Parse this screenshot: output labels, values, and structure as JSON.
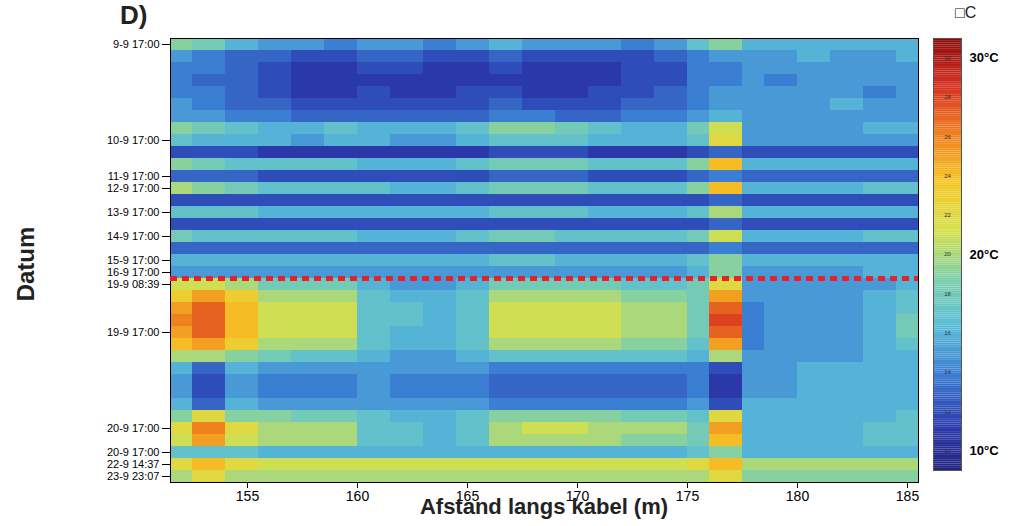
{
  "chart_data": {
    "type": "heatmap",
    "title": "D)",
    "x_label": "Afstand langs kabel (m)",
    "y_label": "Datum",
    "xlim": [
      151.5,
      185.5
    ],
    "xticks": [
      155,
      160,
      165,
      170,
      175,
      180,
      185
    ],
    "x_edges": [
      151.5,
      152.5,
      154,
      155.5,
      157,
      158.5,
      160,
      161.5,
      163,
      164.5,
      166,
      167.5,
      169,
      170.5,
      172,
      173.5,
      175,
      176,
      177.5,
      178.5,
      180,
      181.5,
      183,
      184.5,
      185.5
    ],
    "y_categories": [
      "9-9 17:00",
      null,
      null,
      null,
      null,
      null,
      null,
      null,
      "10-9 17:00",
      null,
      null,
      "11-9 17:00",
      "12-9 17:00",
      null,
      "13-9 17:00",
      null,
      "14-9 17:00",
      null,
      "15-9 17:00",
      "16-9 17:00",
      "19-9 08:39",
      null,
      null,
      null,
      "19-9 17:00",
      null,
      null,
      null,
      null,
      null,
      null,
      null,
      "20-9 17:00",
      null,
      "20-9 17:00",
      "22-9 14:37",
      "23-9 23:07"
    ],
    "break_line": {
      "before": "19-9 08:39",
      "color": "#e8202a",
      "line_style": "dashed"
    },
    "values": [
      [
        19,
        18,
        16,
        15,
        15,
        14,
        15,
        15,
        14,
        15,
        16,
        15,
        15,
        15,
        14,
        15,
        17,
        19,
        16,
        16,
        16,
        16,
        16,
        16
      ],
      [
        15,
        14,
        13,
        13,
        12,
        12,
        13,
        13,
        12,
        12,
        13,
        12,
        12,
        12,
        12,
        13,
        14,
        15,
        15,
        15,
        16,
        15,
        15,
        16
      ],
      [
        14,
        14,
        13,
        12,
        11,
        11,
        12,
        12,
        11,
        11,
        12,
        11,
        11,
        11,
        12,
        12,
        14,
        14,
        15,
        15,
        15,
        15,
        15,
        15
      ],
      [
        14,
        13,
        13,
        12,
        11,
        11,
        11,
        11,
        11,
        11,
        11,
        11,
        11,
        11,
        12,
        12,
        14,
        14,
        15,
        14,
        15,
        15,
        15,
        15
      ],
      [
        14,
        14,
        13,
        12,
        11,
        11,
        12,
        11,
        11,
        12,
        12,
        11,
        11,
        12,
        12,
        13,
        14,
        15,
        15,
        15,
        15,
        15,
        14,
        15
      ],
      [
        15,
        14,
        13,
        13,
        12,
        12,
        12,
        12,
        12,
        12,
        13,
        12,
        12,
        12,
        13,
        13,
        14,
        15,
        15,
        15,
        15,
        16,
        15,
        15
      ],
      [
        15,
        15,
        14,
        14,
        13,
        13,
        13,
        13,
        13,
        13,
        14,
        14,
        13,
        13,
        14,
        14,
        15,
        16,
        15,
        15,
        15,
        15,
        15,
        15
      ],
      [
        19,
        18,
        17,
        16,
        16,
        17,
        16,
        16,
        16,
        17,
        19,
        19,
        18,
        17,
        16,
        16,
        18,
        21,
        15,
        15,
        15,
        15,
        16,
        16
      ],
      [
        17,
        16,
        16,
        16,
        15,
        16,
        16,
        15,
        15,
        16,
        17,
        17,
        17,
        16,
        16,
        16,
        17,
        22,
        15,
        15,
        15,
        15,
        15,
        15
      ],
      [
        12,
        12,
        12,
        11,
        11,
        11,
        11,
        11,
        11,
        11,
        12,
        12,
        12,
        11,
        11,
        11,
        12,
        13,
        12,
        12,
        12,
        12,
        12,
        12
      ],
      [
        19,
        18,
        17,
        17,
        17,
        17,
        16,
        16,
        16,
        17,
        18,
        18,
        18,
        17,
        17,
        17,
        19,
        24,
        16,
        16,
        16,
        16,
        16,
        16
      ],
      [
        13,
        13,
        13,
        12,
        12,
        12,
        12,
        12,
        12,
        12,
        13,
        13,
        13,
        12,
        12,
        12,
        13,
        14,
        13,
        13,
        13,
        13,
        13,
        13
      ],
      [
        20,
        19,
        18,
        17,
        17,
        17,
        17,
        16,
        16,
        17,
        18,
        18,
        18,
        17,
        17,
        17,
        19,
        24,
        16,
        16,
        16,
        16,
        17,
        17
      ],
      [
        12,
        12,
        12,
        12,
        12,
        12,
        12,
        12,
        12,
        12,
        12,
        12,
        12,
        12,
        12,
        12,
        12,
        13,
        12,
        12,
        12,
        12,
        12,
        12
      ],
      [
        17,
        17,
        17,
        16,
        16,
        16,
        16,
        16,
        16,
        16,
        17,
        17,
        17,
        16,
        16,
        16,
        17,
        20,
        16,
        16,
        16,
        16,
        16,
        16
      ],
      [
        12,
        12,
        12,
        12,
        12,
        12,
        12,
        12,
        12,
        12,
        12,
        12,
        12,
        12,
        12,
        12,
        12,
        13,
        12,
        12,
        12,
        12,
        12,
        12
      ],
      [
        18,
        17,
        17,
        17,
        17,
        17,
        16,
        16,
        16,
        17,
        18,
        18,
        17,
        17,
        17,
        17,
        18,
        21,
        16,
        16,
        16,
        16,
        17,
        17
      ],
      [
        13,
        13,
        13,
        13,
        13,
        13,
        13,
        13,
        13,
        13,
        13,
        13,
        13,
        13,
        13,
        13,
        13,
        14,
        13,
        13,
        13,
        13,
        13,
        13
      ],
      [
        16,
        16,
        16,
        16,
        16,
        16,
        16,
        16,
        16,
        16,
        17,
        17,
        16,
        16,
        16,
        16,
        17,
        19,
        16,
        16,
        16,
        16,
        16,
        16
      ],
      [
        15,
        15,
        15,
        15,
        15,
        15,
        15,
        15,
        15,
        15,
        15,
        15,
        15,
        15,
        15,
        15,
        16,
        19,
        15,
        15,
        15,
        15,
        16,
        16
      ],
      [
        21,
        21,
        20,
        18,
        18,
        18,
        16,
        15,
        15,
        16,
        18,
        18,
        18,
        18,
        17,
        17,
        18,
        22,
        15,
        15,
        15,
        15,
        15,
        16
      ],
      [
        23,
        25,
        23,
        20,
        20,
        20,
        17,
        16,
        16,
        17,
        20,
        20,
        20,
        20,
        19,
        19,
        18,
        25,
        15,
        15,
        15,
        15,
        16,
        17
      ],
      [
        25,
        27,
        24,
        21,
        21,
        21,
        17,
        17,
        16,
        17,
        21,
        21,
        21,
        21,
        20,
        20,
        18,
        27,
        14,
        15,
        15,
        15,
        16,
        17
      ],
      [
        26,
        27,
        24,
        21,
        21,
        21,
        17,
        17,
        16,
        17,
        21,
        21,
        21,
        21,
        20,
        20,
        18,
        28,
        14,
        15,
        15,
        15,
        16,
        18
      ],
      [
        25,
        27,
        24,
        21,
        21,
        21,
        17,
        16,
        16,
        17,
        21,
        21,
        21,
        21,
        20,
        20,
        18,
        27,
        14,
        15,
        15,
        15,
        16,
        18
      ],
      [
        24,
        25,
        23,
        20,
        20,
        20,
        17,
        16,
        16,
        17,
        20,
        20,
        20,
        20,
        19,
        19,
        17,
        25,
        14,
        15,
        15,
        15,
        16,
        17
      ],
      [
        20,
        20,
        19,
        18,
        17,
        17,
        16,
        15,
        15,
        16,
        17,
        17,
        17,
        17,
        17,
        17,
        16,
        20,
        15,
        15,
        15,
        15,
        16,
        16
      ],
      [
        16,
        13,
        16,
        15,
        15,
        15,
        15,
        15,
        15,
        15,
        14,
        14,
        14,
        14,
        14,
        14,
        14,
        12,
        15,
        15,
        16,
        16,
        16,
        16
      ],
      [
        15,
        12,
        15,
        14,
        14,
        14,
        15,
        14,
        14,
        14,
        13,
        13,
        13,
        13,
        13,
        13,
        14,
        11,
        15,
        15,
        16,
        16,
        16,
        16
      ],
      [
        15,
        12,
        15,
        14,
        14,
        14,
        15,
        14,
        14,
        14,
        13,
        13,
        13,
        13,
        13,
        13,
        14,
        11,
        15,
        15,
        16,
        16,
        16,
        16
      ],
      [
        16,
        13,
        16,
        15,
        15,
        15,
        15,
        15,
        15,
        15,
        14,
        14,
        14,
        14,
        14,
        14,
        15,
        12,
        16,
        16,
        16,
        16,
        16,
        16
      ],
      [
        19,
        22,
        19,
        19,
        18,
        18,
        17,
        16,
        16,
        17,
        19,
        19,
        19,
        19,
        18,
        18,
        17,
        22,
        16,
        16,
        16,
        16,
        16,
        17
      ],
      [
        22,
        26,
        22,
        20,
        20,
        20,
        17,
        17,
        16,
        17,
        20,
        21,
        21,
        20,
        20,
        20,
        18,
        25,
        16,
        16,
        16,
        16,
        17,
        17
      ],
      [
        21,
        25,
        21,
        20,
        20,
        20,
        17,
        17,
        16,
        17,
        20,
        20,
        20,
        20,
        19,
        19,
        18,
        24,
        16,
        16,
        16,
        16,
        17,
        17
      ],
      [
        17,
        17,
        17,
        16,
        16,
        16,
        16,
        16,
        16,
        16,
        16,
        16,
        16,
        16,
        16,
        16,
        17,
        19,
        16,
        16,
        16,
        16,
        16,
        16
      ],
      [
        22,
        24,
        22,
        21,
        21,
        21,
        21,
        21,
        21,
        21,
        21,
        21,
        21,
        21,
        21,
        21,
        22,
        24,
        20,
        20,
        20,
        20,
        20,
        20
      ],
      [
        20,
        22,
        20,
        20,
        20,
        20,
        20,
        20,
        20,
        20,
        20,
        20,
        20,
        20,
        20,
        20,
        20,
        22,
        19,
        19,
        19,
        19,
        19,
        19
      ]
    ],
    "colorbar": {
      "title": "□C",
      "range": [
        9,
        31
      ],
      "ticks": [
        10,
        12,
        14,
        16,
        18,
        20,
        22,
        24,
        26,
        28,
        30
      ],
      "labels": [
        {
          "value": 30,
          "label": "30°C"
        },
        {
          "value": 20,
          "label": "20°C"
        },
        {
          "value": 10,
          "label": "10°C"
        }
      ],
      "colors": [
        "#22207f",
        "#2c3fb0",
        "#3a7cd2",
        "#58bcd8",
        "#7fd0a8",
        "#d6e04c",
        "#f6c626",
        "#ef7f1f",
        "#d7301f",
        "#8b0a0a"
      ]
    }
  }
}
